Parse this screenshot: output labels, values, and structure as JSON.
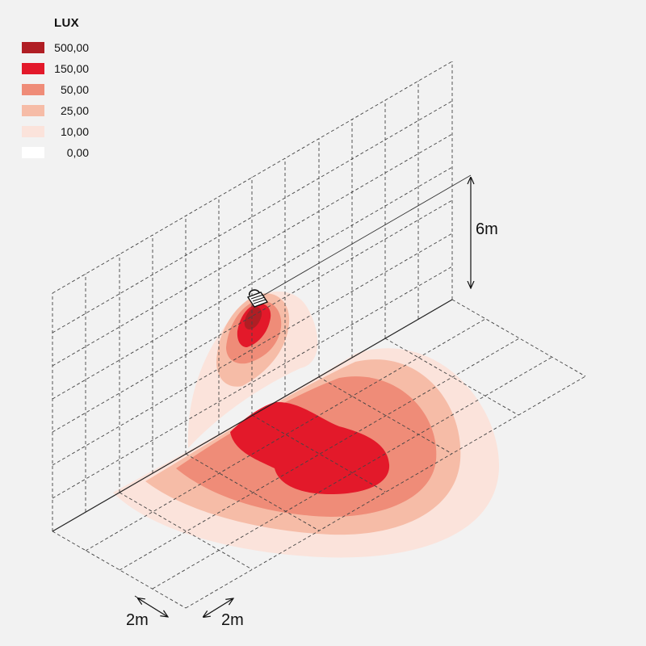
{
  "legend": {
    "title": "LUX",
    "items": [
      {
        "value": "500,00",
        "color": "#b01e24"
      },
      {
        "value": "150,00",
        "color": "#e3192a"
      },
      {
        "value": "50,00",
        "color": "#ef8c78"
      },
      {
        "value": "25,00",
        "color": "#f6bca7"
      },
      {
        "value": "10,00",
        "color": "#fbe3db"
      },
      {
        "value": "0,00",
        "color": "#ffffff"
      }
    ]
  },
  "dimensions": {
    "height": "6m",
    "grid_depth": "2m",
    "grid_width": "2m"
  }
}
